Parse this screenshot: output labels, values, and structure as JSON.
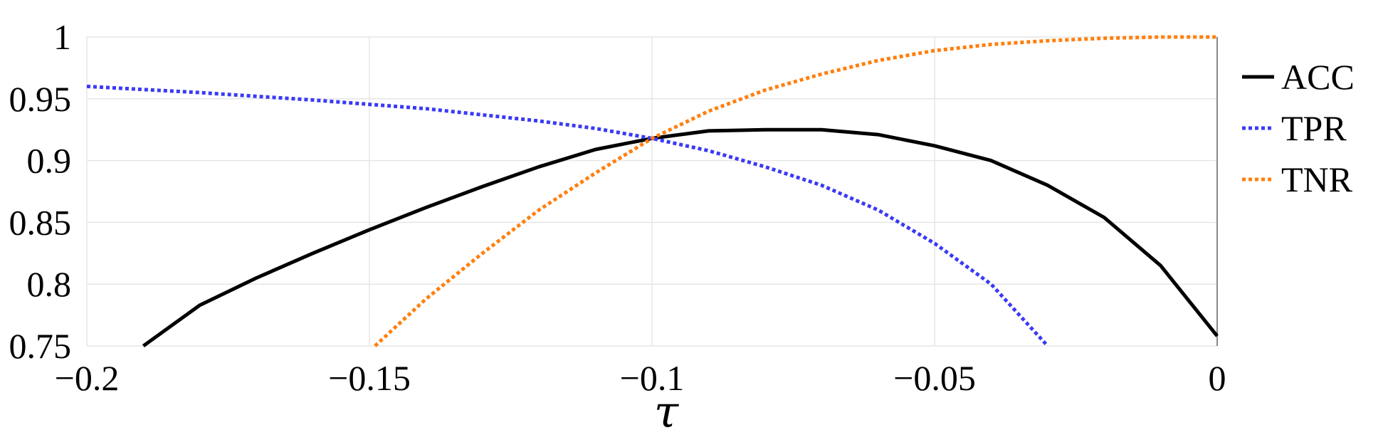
{
  "chart_data": {
    "type": "line",
    "title": "",
    "xlabel": "τ",
    "ylabel": "",
    "xlim": [
      -0.2,
      0
    ],
    "ylim": [
      0.75,
      1
    ],
    "xticks": [
      -0.2,
      -0.15,
      -0.1,
      -0.05,
      0
    ],
    "xtick_labels": [
      "−0.2",
      "−0.15",
      "−0.1",
      "−0.05",
      "0"
    ],
    "yticks": [
      0.75,
      0.8,
      0.85,
      0.9,
      0.95,
      1
    ],
    "ytick_labels": [
      "0.75",
      "0.8",
      "0.85",
      "0.9",
      "0.95",
      "1"
    ],
    "grid": true,
    "legend_position": "right",
    "series": [
      {
        "name": "ACC",
        "color": "#000000",
        "style": "solid",
        "x": [
          -0.19,
          -0.18,
          -0.17,
          -0.16,
          -0.15,
          -0.14,
          -0.13,
          -0.12,
          -0.11,
          -0.1,
          -0.09,
          -0.08,
          -0.07,
          -0.06,
          -0.05,
          -0.04,
          -0.03,
          -0.02,
          -0.01,
          0
        ],
        "y": [
          0.75,
          0.783,
          0.805,
          0.825,
          0.844,
          0.862,
          0.879,
          0.895,
          0.909,
          0.918,
          0.924,
          0.925,
          0.925,
          0.921,
          0.912,
          0.9,
          0.88,
          0.854,
          0.815,
          0.758
        ]
      },
      {
        "name": "TPR",
        "color": "#3a3af5",
        "style": "dotted",
        "x": [
          -0.2,
          -0.18,
          -0.16,
          -0.14,
          -0.12,
          -0.11,
          -0.1,
          -0.09,
          -0.08,
          -0.07,
          -0.06,
          -0.05,
          -0.04,
          -0.03
        ],
        "y": [
          0.96,
          0.955,
          0.949,
          0.942,
          0.932,
          0.926,
          0.918,
          0.908,
          0.895,
          0.88,
          0.86,
          0.833,
          0.8,
          0.75
        ]
      },
      {
        "name": "TNR",
        "color": "#ff7f0e",
        "style": "dotted",
        "x": [
          -0.149,
          -0.14,
          -0.13,
          -0.12,
          -0.11,
          -0.1,
          -0.09,
          -0.08,
          -0.07,
          -0.06,
          -0.05,
          -0.04,
          -0.03,
          -0.02,
          -0.01,
          0
        ],
        "y": [
          0.75,
          0.788,
          0.825,
          0.86,
          0.89,
          0.918,
          0.94,
          0.957,
          0.97,
          0.981,
          0.989,
          0.994,
          0.997,
          0.999,
          1.0,
          1.0
        ]
      }
    ]
  }
}
